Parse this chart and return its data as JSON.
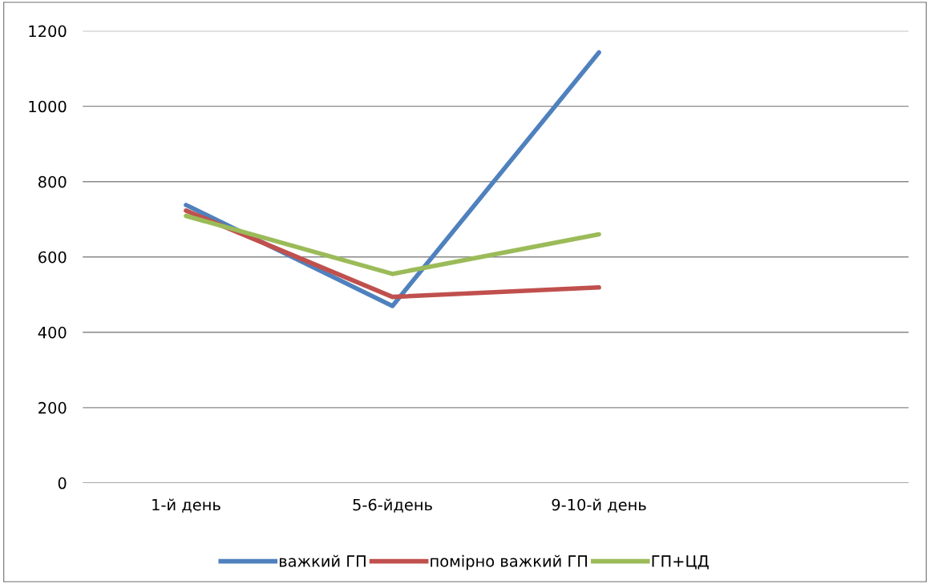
{
  "chart_data": {
    "type": "line",
    "categories": [
      "1-й день",
      "5-6-йдень",
      "9-10-й день",
      null
    ],
    "series": [
      {
        "name": "важкий ГП",
        "color": "#4f81bd",
        "values": [
          738,
          470,
          1143,
          null
        ]
      },
      {
        "name": "помірно важкий ГП",
        "color": "#c0504d",
        "values": [
          723,
          494,
          519,
          null
        ]
      },
      {
        "name": "ГП+ЦД",
        "color": "#9bbb59",
        "values": [
          709,
          555,
          660,
          null
        ]
      }
    ],
    "ylim": [
      0,
      1200
    ],
    "yticks": [
      0,
      200,
      400,
      600,
      800,
      1000,
      1200
    ],
    "grid": "y",
    "legend": "bottom",
    "marker": "none",
    "line_style": "solid"
  }
}
